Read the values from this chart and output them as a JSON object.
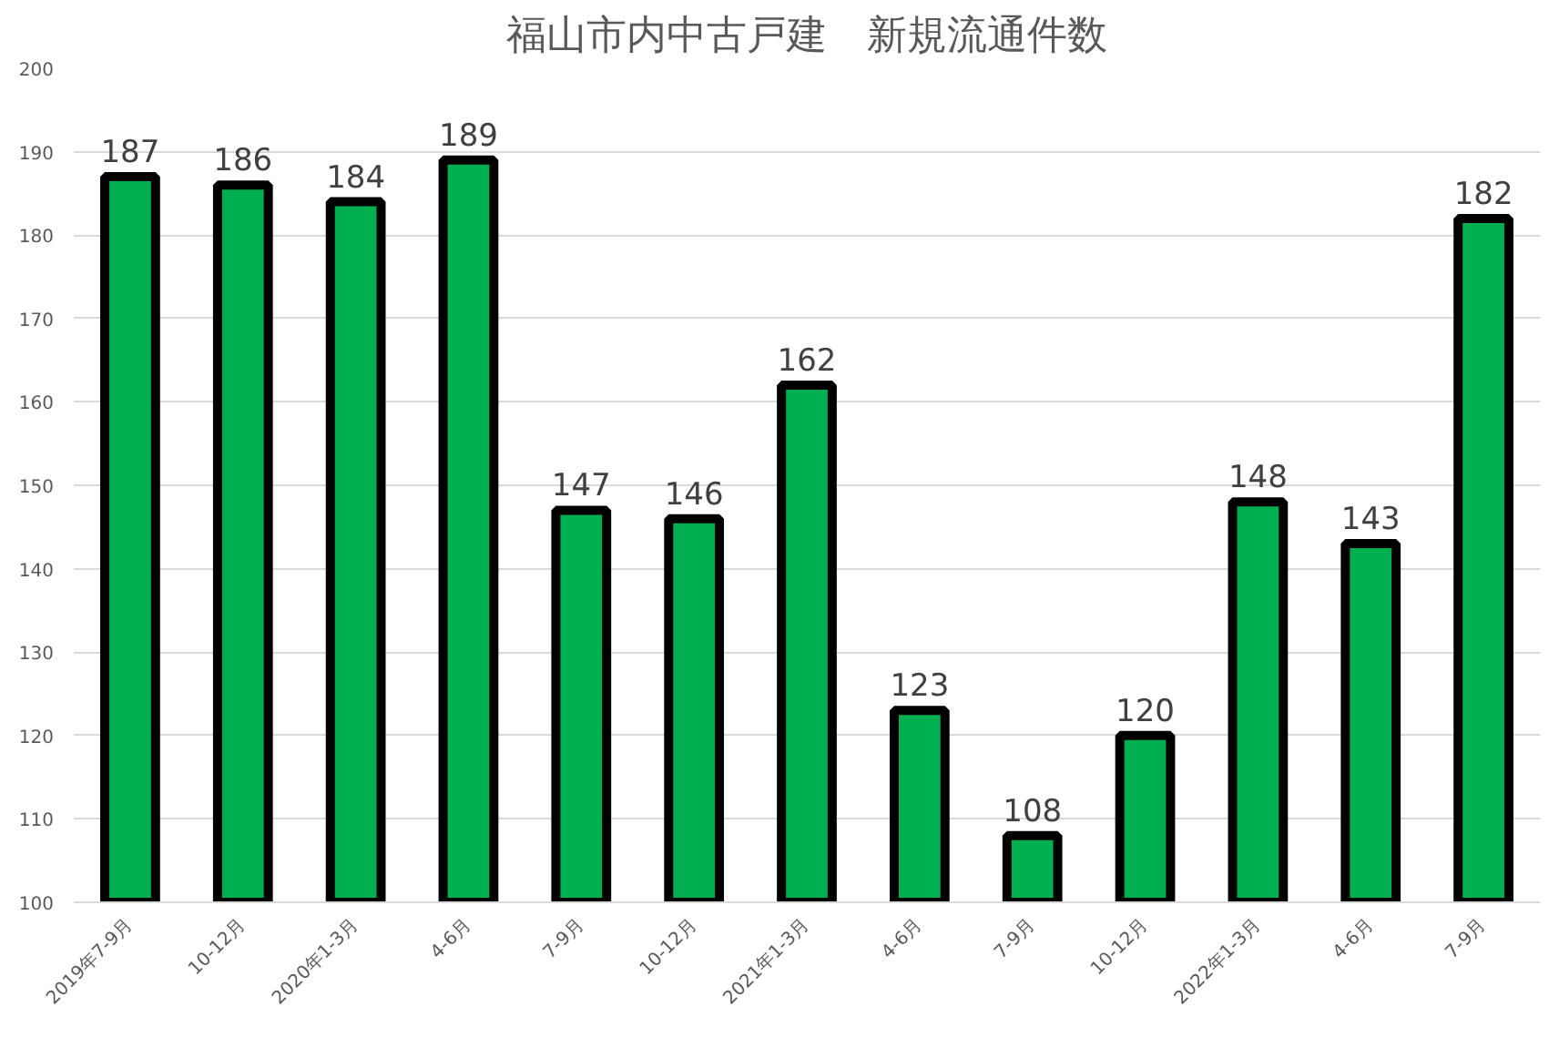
{
  "chart_data": {
    "type": "bar",
    "title": "福山市内中古戸建　新規流通件数",
    "categories": [
      "2019年7-9月",
      "10-12月",
      "2020年1-3月",
      "4-6月",
      "7-9月",
      "10-12月",
      "2021年1-3月",
      "4-6月",
      "7-9月",
      "10-12月",
      "2022年1-3月",
      "4-6月",
      "7-9月"
    ],
    "values": [
      187,
      186,
      184,
      189,
      147,
      146,
      162,
      123,
      108,
      120,
      148,
      143,
      182
    ],
    "color": "#00b050",
    "ylim": [
      100,
      200
    ],
    "yticks": [
      100,
      110,
      120,
      130,
      140,
      150,
      160,
      170,
      180,
      190,
      200
    ],
    "grid": "y",
    "data_labels": true
  }
}
